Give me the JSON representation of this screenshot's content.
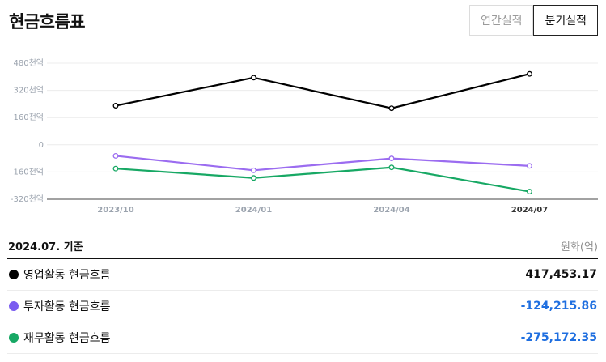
{
  "header": {
    "title": "현금흐름표"
  },
  "tabs": [
    {
      "label": "연간실적",
      "active": false
    },
    {
      "label": "분기실적",
      "active": true
    }
  ],
  "chart_data": {
    "type": "line",
    "categories": [
      "2023/10",
      "2024/01",
      "2024/04",
      "2024/07"
    ],
    "y_ticks": [
      {
        "value": 480,
        "label": "480천억"
      },
      {
        "value": 320,
        "label": "320천억"
      },
      {
        "value": 160,
        "label": "160천억"
      },
      {
        "value": 0,
        "label": "0"
      },
      {
        "value": -160,
        "label": "-160천억"
      },
      {
        "value": -320,
        "label": "-320천억"
      }
    ],
    "ylim": [
      -320,
      480
    ],
    "grid": true,
    "series": [
      {
        "name": "영업활동 현금흐름",
        "color": "#000000",
        "values": [
          230,
          395,
          215,
          417
        ]
      },
      {
        "name": "투자활동 현금흐름",
        "color": "#9b6cf0",
        "values": [
          -65,
          -150,
          -80,
          -124
        ]
      },
      {
        "name": "재무활동 현금흐름",
        "color": "#17a864",
        "values": [
          -140,
          -195,
          -133,
          -275
        ]
      }
    ]
  },
  "table": {
    "basis": "2024.07. 기준",
    "unit": "원화(억)",
    "rows": [
      {
        "label": "영업활동 현금흐름",
        "value": "417,453.17",
        "dot_color": "#000000",
        "value_color": "#111111"
      },
      {
        "label": "투자활동 현금흐름",
        "value": "-124,215.86",
        "dot_color": "#7a5cf0",
        "value_color": "#1f6fe0"
      },
      {
        "label": "재무활동 현금흐름",
        "value": "-275,172.35",
        "dot_color": "#17a864",
        "value_color": "#1f6fe0"
      }
    ]
  }
}
